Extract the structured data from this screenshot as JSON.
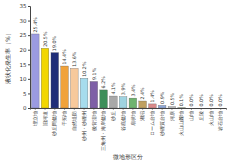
{
  "chart_data": {
    "type": "bar",
    "y_label": "液状化発生率（%）",
    "x_label": "微地形区分",
    "categories": [
      "埋立地",
      "旧河道",
      "砂丘間低地",
      "干拓地",
      "自然堤防",
      "砂州・砂礫州",
      "後背湿地",
      "三角州・海岸低地",
      "砂丘",
      "谷底低地",
      "扇状地",
      "湖沼",
      "ローム台地",
      "砂礫質台地",
      "河原",
      "火山山麓地",
      "山地",
      "丘陵",
      "火山地",
      "岩石台地"
    ],
    "values": [
      25.4,
      20.5,
      19.0,
      14.4,
      13.6,
      10.2,
      9.1,
      6.2,
      4.1,
      3.9,
      3.4,
      2.4,
      1.4,
      0.9,
      0.5,
      0.1,
      0,
      0,
      0,
      0
    ],
    "value_labels": [
      "25.4%",
      "20.5%",
      "19.0%",
      "14.4%",
      "13.6%",
      "10.2%",
      "9.1%",
      "6.2%",
      "4.1%",
      "3.9%",
      "3.4%",
      "2.4%",
      "1.4%",
      "0.9%",
      "0.5%",
      "0.1%",
      "0.0%",
      "0.0%",
      "0.0%",
      "0.0%"
    ],
    "colors": [
      "#9b9be0",
      "#f2d600",
      "#1f2d78",
      "#f0a23a",
      "#f7c99c",
      "#a6dced",
      "#7e5fa6",
      "#3d8f5a",
      "#a8a8a8",
      "#9fd3e0",
      "#6fb36f",
      "#c0a060",
      "#d98a8a",
      "#8fa8d8",
      "#c8c8c8",
      "#b0d890",
      "#d0d0d0",
      "#d0d0d0",
      "#d0d0d0",
      "#d0d0d0"
    ],
    "ylim": [
      0,
      35
    ],
    "yticks": [
      0,
      5,
      10,
      15,
      20,
      25,
      30,
      35
    ],
    "grid": false,
    "data_labels": true
  }
}
